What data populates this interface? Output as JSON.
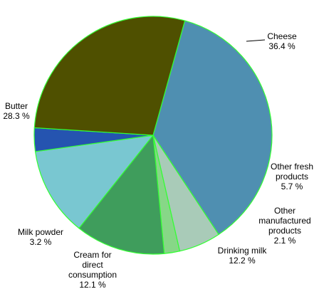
{
  "chart_data": {
    "type": "pie",
    "title": "",
    "slices": [
      {
        "name": "Cheese",
        "value": 36.4,
        "value_label": "36.4 %",
        "color": "#4f8fb1"
      },
      {
        "name": "Other fresh products",
        "name_lines": [
          "Other fresh",
          "products"
        ],
        "value": 5.7,
        "value_label": "5.7 %",
        "color": "#a9cbb8"
      },
      {
        "name": "Other manufactured products",
        "name_lines": [
          "Other",
          "manufactured",
          "products"
        ],
        "value": 2.1,
        "value_label": "2.1 %",
        "color": "#87d787"
      },
      {
        "name": "Drinking milk",
        "name_lines": [
          "Drinking milk"
        ],
        "value": 12.2,
        "value_label": "12.2 %",
        "color": "#3f9d5c"
      },
      {
        "name": "Cream for direct consumption",
        "name_lines": [
          "Cream for",
          "direct",
          "consumption"
        ],
        "value": 12.1,
        "value_label": "12.1 %",
        "color": "#79c7d1"
      },
      {
        "name": "Milk powder",
        "name_lines": [
          "Milk powder"
        ],
        "value": 3.2,
        "value_label": "3.2 %",
        "color": "#2554b0"
      },
      {
        "name": "Butter",
        "name_lines": [
          "Butter"
        ],
        "value": 28.3,
        "value_label": "28.3 %",
        "color": "#4f5000"
      }
    ],
    "slice_border_color": "#33ff33",
    "legend": "none",
    "labels": "outside"
  }
}
